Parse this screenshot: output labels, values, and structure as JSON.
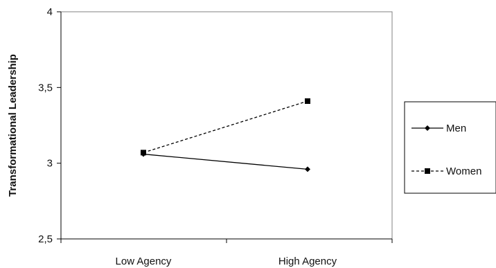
{
  "chart_data": {
    "type": "line",
    "title": "",
    "xlabel": "",
    "ylabel": "Transformational Leadership",
    "categories": [
      "Low Agency",
      "High Agency"
    ],
    "ylim": [
      2.5,
      4
    ],
    "yticks": [
      2.5,
      3,
      3.5,
      4
    ],
    "ytick_labels": [
      "2,5",
      "3",
      "3,5",
      "4"
    ],
    "grid": false,
    "legend": "right",
    "series": [
      {
        "name": "Men",
        "values": [
          3.06,
          2.96
        ],
        "line_style": "solid",
        "marker": "diamond",
        "color": "#000000"
      },
      {
        "name": "Women",
        "values": [
          3.07,
          3.41
        ],
        "line_style": "dashed",
        "marker": "square",
        "color": "#000000"
      }
    ]
  }
}
